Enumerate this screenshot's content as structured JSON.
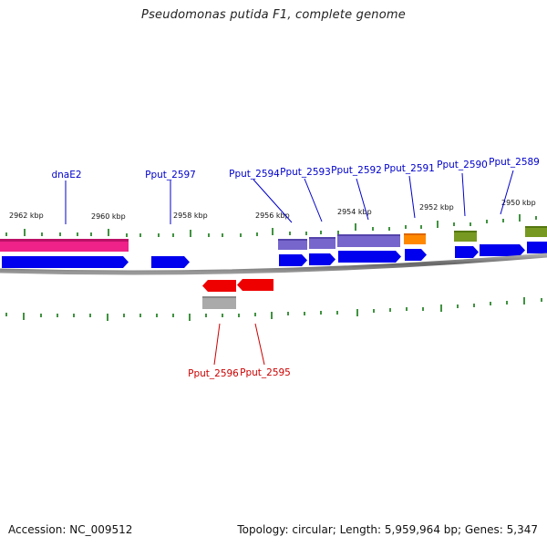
{
  "title": "Pseudomonas putida F1, complete genome",
  "footer": {
    "accession": "Accession: NC_009512",
    "summary": "Topology: circular; Length: 5,959,964 bp; Genes: 5,347"
  },
  "colors": {
    "forward_gene": "#0000ee",
    "reverse_gene": "#ee0000",
    "backbone": "#888888",
    "tick": "#117711",
    "pink_feature": "#ee2288",
    "purple_feature": "#7766cc",
    "orange_feature": "#ff8800",
    "olive_feature": "#779922",
    "gray_feature": "#aaaaaa",
    "label_forward": "#0000cc",
    "label_reverse": "#cc0000"
  },
  "scale_labels": [
    "2962 kbp",
    "2960 kbp",
    "2958 kbp",
    "2956 kbp",
    "2954 kbp",
    "2952 kbp",
    "2950 kbp"
  ],
  "gene_labels_forward": [
    "dnaE2",
    "Pput_2597",
    "Pput_2594",
    "Pput_2593",
    "Pput_2592",
    "Pput_2591",
    "Pput_2590",
    "Pput_2589"
  ],
  "gene_labels_reverse": [
    "Pput_2596",
    "Pput_2595"
  ]
}
